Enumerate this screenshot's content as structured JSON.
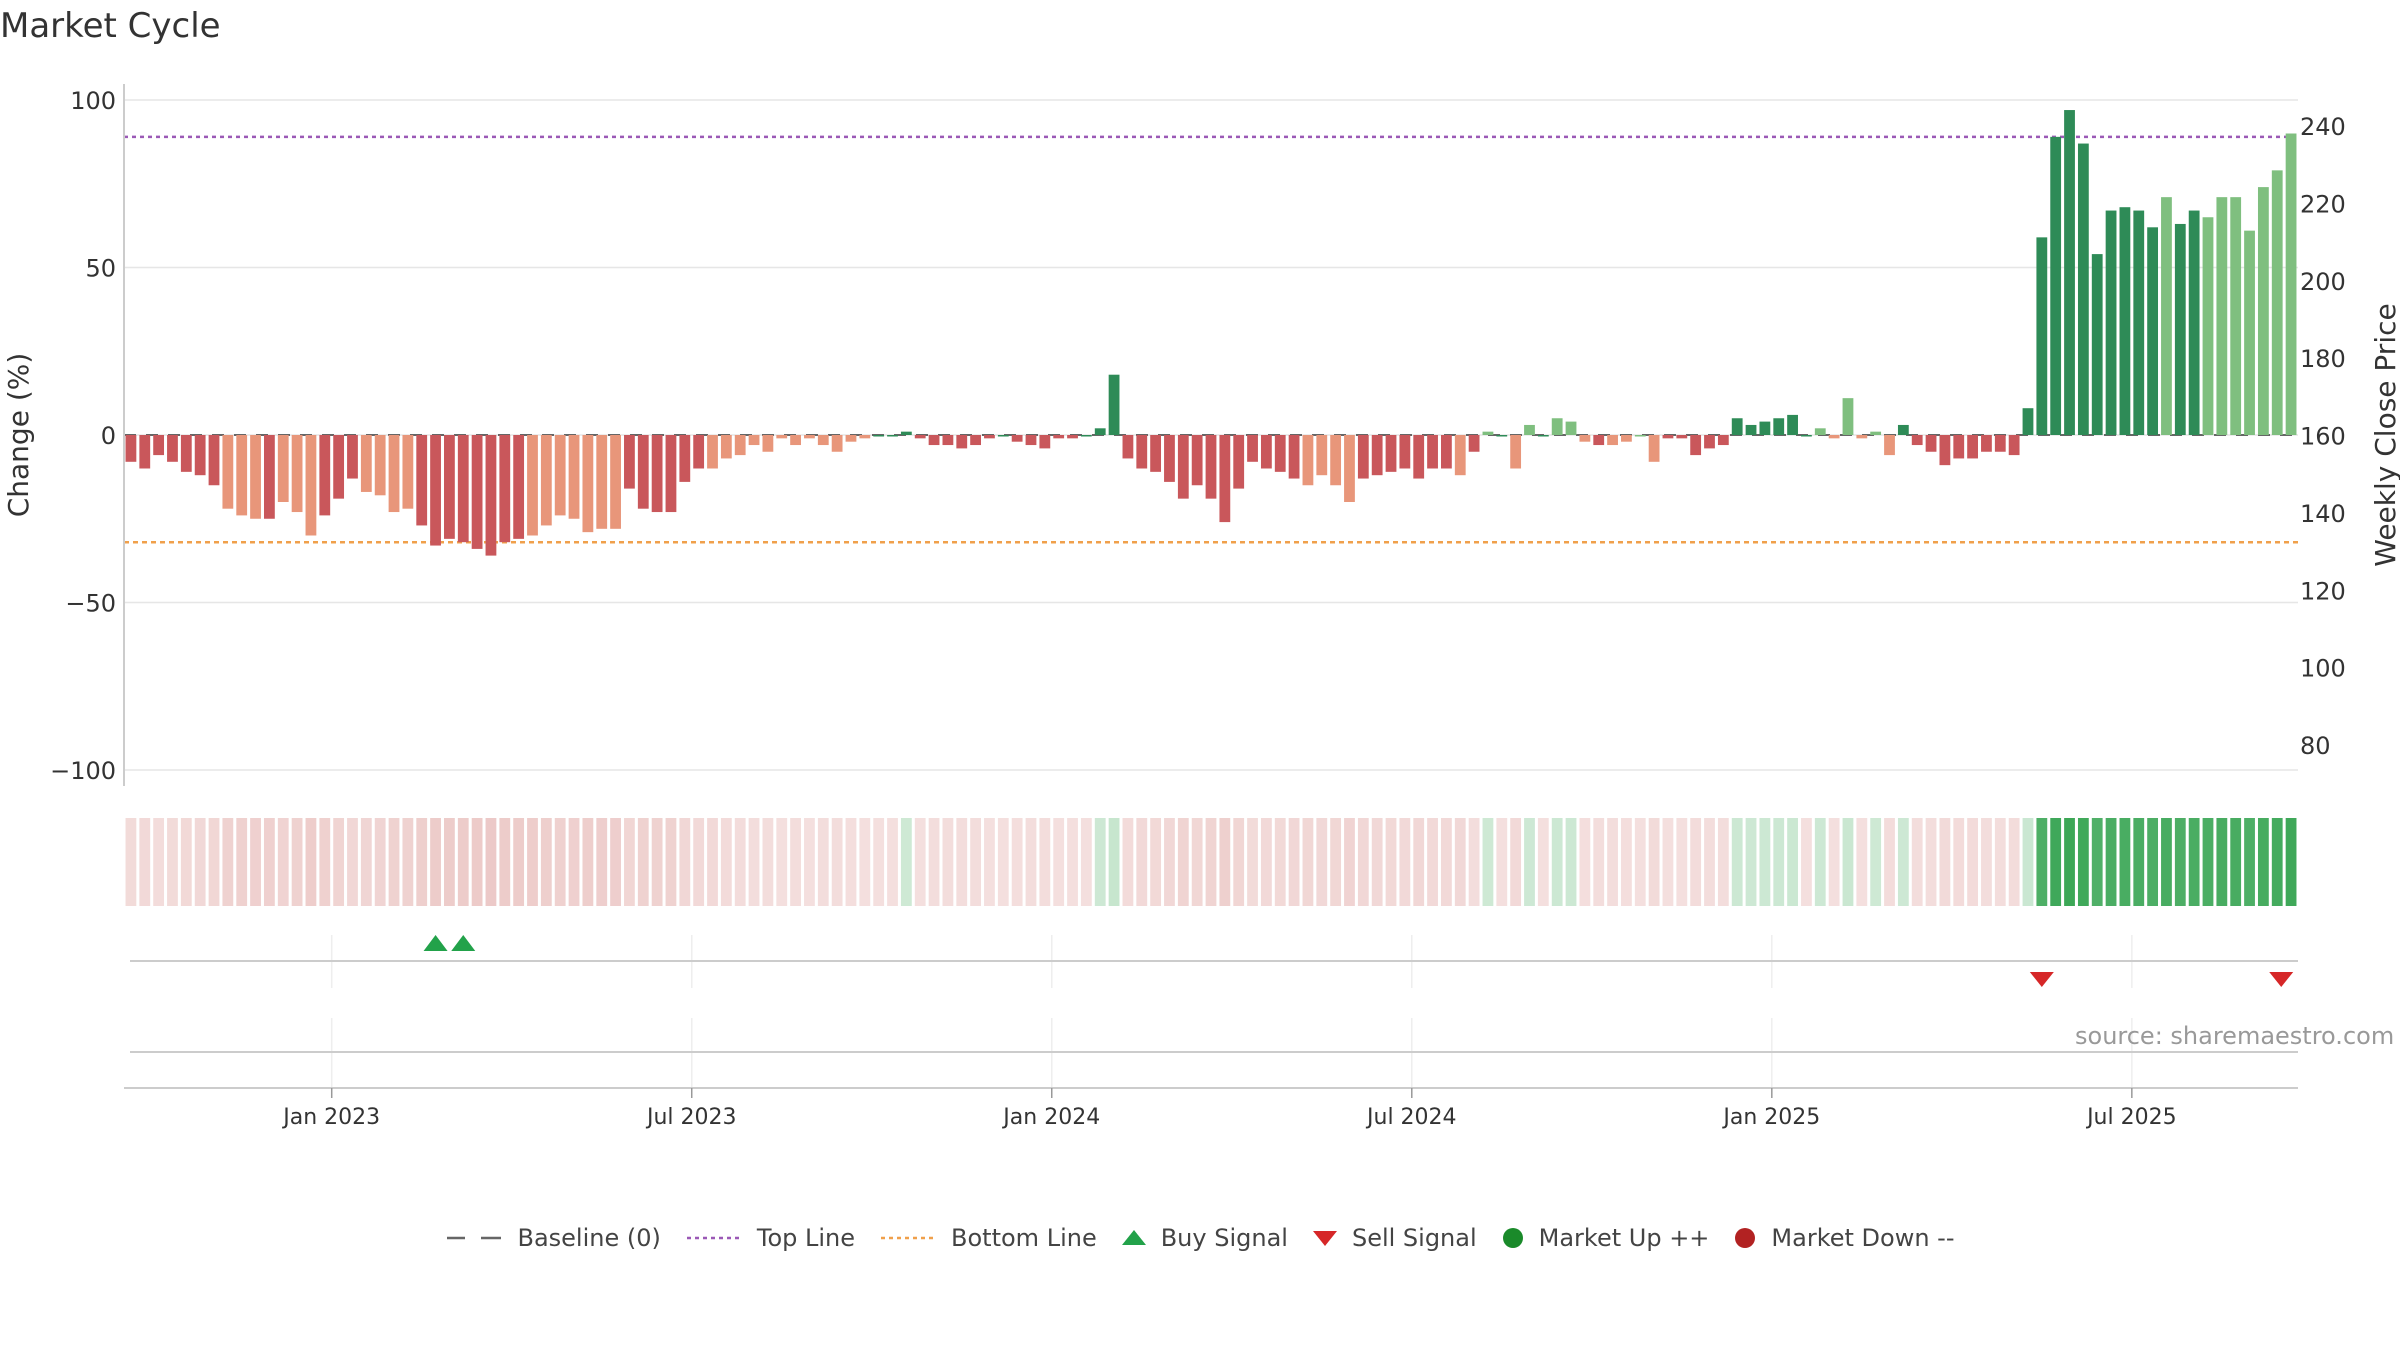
{
  "title": "Market Cycle",
  "source": "source: sharemaestro.com",
  "colors": {
    "dark_red": "#c9575b",
    "light_red": "#e8967a",
    "dark_green": "#2e8b57",
    "light_green": "#7fbf7f",
    "top_line": "#9b59b6",
    "bottom_line": "#f0a04b",
    "baseline": "#666666",
    "buy": "#22a24a",
    "sell": "#d62728",
    "up": "#1a8a2a",
    "down": "#b22222"
  },
  "legend": [
    {
      "label": "Baseline (0)",
      "icon": "dash-line-icon",
      "color": "#666666"
    },
    {
      "label": "Top Line",
      "icon": "dotted-line-icon",
      "color": "#9b59b6"
    },
    {
      "label": "Bottom Line",
      "icon": "dotted-line-icon",
      "color": "#f0a04b"
    },
    {
      "label": "Buy Signal",
      "icon": "triangle-up-icon",
      "color": "#22a24a"
    },
    {
      "label": "Sell Signal",
      "icon": "triangle-down-icon",
      "color": "#d62728"
    },
    {
      "label": "Market Up ++",
      "icon": "circle-icon",
      "color": "#1a8a2a"
    },
    {
      "label": "Market Down --",
      "icon": "circle-icon",
      "color": "#b22222"
    }
  ],
  "chart_data": {
    "type": "bar",
    "title": "Market Cycle",
    "ylabel": "Change (%)",
    "y2label": "Weekly Close Price",
    "ylim": [
      -100,
      100
    ],
    "y_ticks": [
      "100",
      "50",
      "0",
      "−50",
      "−100"
    ],
    "y2_ticks": [
      "240",
      "220",
      "200",
      "180",
      "160",
      "140",
      "120",
      "100",
      "80"
    ],
    "y2lim": [
      80,
      240
    ],
    "top_line": 89,
    "bottom_line": -32,
    "baseline": 0,
    "x_tick_labels": [
      "Jan 2023",
      "Jul 2023",
      "Jan 2024",
      "Jul 2024",
      "Jan 2025",
      "Jul 2025"
    ],
    "x_tick_weeks": [
      15,
      41,
      67,
      93,
      119,
      145
    ],
    "weeks_count": 157,
    "values": [
      -8,
      -10,
      -6,
      -8,
      -11,
      -12,
      -15,
      -22,
      -24,
      -25,
      -25,
      -20,
      -23,
      -30,
      -24,
      -19,
      -13,
      -17,
      -18,
      -23,
      -22,
      -27,
      -33,
      -31,
      -32,
      -34,
      -36,
      -32,
      -31,
      -30,
      -27,
      -24,
      -25,
      -29,
      -28,
      -28,
      -16,
      -22,
      -23,
      -23,
      -14,
      -10,
      -10,
      -7,
      -6,
      -3,
      -5,
      -1,
      -3,
      -1,
      -3,
      -5,
      -2,
      -1,
      0,
      0,
      1,
      -1,
      -3,
      -3,
      -4,
      -3,
      -1,
      0,
      -2,
      -3,
      -4,
      -1,
      -1,
      0,
      2,
      18,
      -7,
      -10,
      -11,
      -14,
      -19,
      -15,
      -19,
      -26,
      -16,
      -8,
      -10,
      -11,
      -13,
      -15,
      -12,
      -15,
      -20,
      -13,
      -12,
      -11,
      -10,
      -13,
      -10,
      -10,
      -12,
      -5,
      1,
      0,
      -10,
      3,
      0,
      5,
      4,
      -2,
      -3,
      -3,
      -2,
      0,
      -8,
      -1,
      -1,
      -6,
      -4,
      -3,
      5,
      3,
      4,
      5,
      6,
      0,
      2,
      -1,
      11,
      -1,
      1,
      -6,
      3,
      -3,
      -5,
      -9,
      -7,
      -7,
      -5,
      -5,
      -6,
      8,
      59,
      89,
      97,
      87,
      54,
      67,
      68,
      67,
      62,
      71,
      63,
      67,
      65,
      71,
      71,
      61,
      74,
      79,
      90
    ],
    "bar_shade": "dddddddllldllldddllllddddddddlllllllddddddlllllllllllldddddddddddddddddddddddddddddddlllldddddddldldlldllldlllldddddddddddlllllldddddddddddddddddddlddlllllllddddlldddllllddddlllllllldllllllll",
    "buy_signal_weeks": [
      22,
      24
    ],
    "sell_signal_weeks": [
      138,
      155
    ]
  }
}
